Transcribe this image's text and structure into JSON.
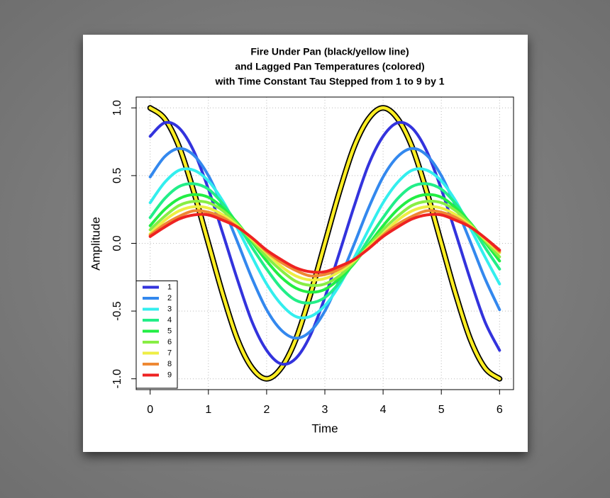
{
  "chart_data": {
    "type": "line",
    "title": [
      "Fire Under Pan (black/yellow line)",
      "and Lagged Pan Temperatures (colored)",
      "with Time Constant Tau Stepped from 1 to 9 by 1"
    ],
    "xlabel": "Time",
    "ylabel": "Amplitude",
    "x": [
      0,
      0.25,
      0.5,
      0.75,
      1,
      1.25,
      1.5,
      1.75,
      2,
      2.25,
      2.5,
      2.75,
      3,
      3.25,
      3.5,
      3.75,
      4,
      4.25,
      4.5,
      4.75,
      5,
      5.25,
      5.5,
      5.75,
      6
    ],
    "series": [
      {
        "color": "#ffee22",
        "outline": "#000000",
        "values": [
          1,
          0.92,
          0.71,
          0.38,
          0,
          -0.38,
          -0.71,
          -0.92,
          -1,
          -0.92,
          -0.71,
          -0.38,
          0,
          0.38,
          0.71,
          0.92,
          1,
          0.92,
          0.71,
          0.38,
          0,
          -0.38,
          -0.71,
          -0.92,
          -1
        ]
      },
      {
        "name": "1",
        "color": "#3333dd",
        "values": [
          0.79,
          0.89,
          0.85,
          0.68,
          0.4,
          0.07,
          -0.27,
          -0.58,
          -0.79,
          -0.89,
          -0.85,
          -0.68,
          -0.4,
          -0.07,
          0.27,
          0.58,
          0.79,
          0.89,
          0.85,
          0.68,
          0.4,
          0.07,
          -0.27,
          -0.58,
          -0.79
        ]
      },
      {
        "name": "2",
        "color": "#3388ee",
        "values": [
          0.49,
          0.64,
          0.7,
          0.65,
          0.5,
          0.27,
          0.01,
          -0.26,
          -0.49,
          -0.64,
          -0.7,
          -0.65,
          -0.5,
          -0.27,
          -0.01,
          0.26,
          0.49,
          0.64,
          0.7,
          0.65,
          0.5,
          0.27,
          0.01,
          -0.26,
          -0.49
        ]
      },
      {
        "name": "3",
        "color": "#33eeee",
        "values": [
          0.3,
          0.45,
          0.54,
          0.54,
          0.46,
          0.31,
          0.11,
          -0.1,
          -0.3,
          -0.45,
          -0.54,
          -0.54,
          -0.46,
          -0.31,
          -0.11,
          0.1,
          0.3,
          0.45,
          0.54,
          0.54,
          0.46,
          0.31,
          0.11,
          -0.1,
          -0.3
        ]
      },
      {
        "name": "4",
        "color": "#22ee88",
        "values": [
          0.19,
          0.33,
          0.42,
          0.44,
          0.4,
          0.29,
          0.14,
          -0.03,
          -0.19,
          -0.33,
          -0.42,
          -0.44,
          -0.4,
          -0.29,
          -0.14,
          0.03,
          0.19,
          0.33,
          0.42,
          0.44,
          0.4,
          0.29,
          0.14,
          -0.03,
          -0.19
        ]
      },
      {
        "name": "5",
        "color": "#22ee44",
        "values": [
          0.13,
          0.25,
          0.33,
          0.36,
          0.34,
          0.26,
          0.15,
          0.01,
          -0.13,
          -0.25,
          -0.33,
          -0.36,
          -0.34,
          -0.26,
          -0.15,
          -0.01,
          0.13,
          0.25,
          0.33,
          0.36,
          0.34,
          0.26,
          0.15,
          0.01,
          -0.13
        ]
      },
      {
        "name": "6",
        "color": "#88ee44",
        "values": [
          0.1,
          0.2,
          0.28,
          0.31,
          0.3,
          0.24,
          0.14,
          0.02,
          -0.1,
          -0.2,
          -0.28,
          -0.31,
          -0.3,
          -0.24,
          -0.14,
          -0.02,
          0.1,
          0.2,
          0.28,
          0.31,
          0.3,
          0.24,
          0.14,
          0.02,
          -0.1
        ]
      },
      {
        "name": "7",
        "color": "#eeee44",
        "values": [
          0.07,
          0.17,
          0.24,
          0.27,
          0.26,
          0.21,
          0.13,
          0.03,
          -0.07,
          -0.17,
          -0.24,
          -0.27,
          -0.26,
          -0.21,
          -0.13,
          -0.03,
          0.07,
          0.17,
          0.24,
          0.27,
          0.26,
          0.21,
          0.13,
          0.03,
          -0.07
        ]
      },
      {
        "name": "8",
        "color": "#ee8833",
        "values": [
          0.06,
          0.14,
          0.2,
          0.24,
          0.23,
          0.19,
          0.12,
          0.04,
          -0.06,
          -0.14,
          -0.2,
          -0.24,
          -0.23,
          -0.19,
          -0.12,
          -0.04,
          0.06,
          0.14,
          0.2,
          0.24,
          0.23,
          0.19,
          0.12,
          0.04,
          -0.06
        ]
      },
      {
        "name": "9",
        "color": "#ee2222",
        "values": [
          0.05,
          0.12,
          0.18,
          0.21,
          0.21,
          0.17,
          0.12,
          0.04,
          -0.05,
          -0.12,
          -0.18,
          -0.21,
          -0.21,
          -0.17,
          -0.12,
          -0.04,
          0.05,
          0.12,
          0.18,
          0.21,
          0.21,
          0.17,
          0.12,
          0.04,
          -0.05
        ]
      }
    ],
    "xlim": [
      -0.24,
      6.24
    ],
    "ylim": [
      -1.08,
      1.08
    ],
    "xticks": [
      0,
      1,
      2,
      3,
      4,
      5,
      6
    ],
    "yticks": [
      {
        "value": -1,
        "label": "-1.0"
      },
      -0.5,
      {
        "value": 0,
        "label": "0.0"
      },
      0.5,
      {
        "value": 1,
        "label": "1.0"
      }
    ],
    "grid": true,
    "legend": "bottomleft"
  }
}
